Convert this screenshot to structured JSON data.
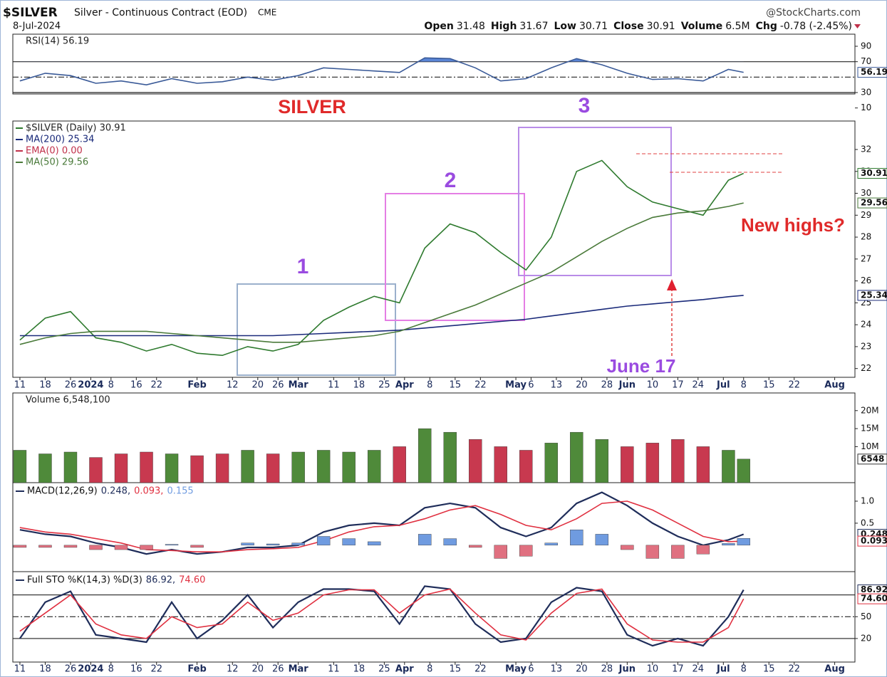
{
  "header": {
    "symbol": "$SILVER",
    "name": "Silver - Continuous Contract (EOD)",
    "exchange": "CME",
    "source": "@StockCharts.com",
    "date": "8-Jul-2024",
    "quote": [
      {
        "label": "Open",
        "value": "31.48"
      },
      {
        "label": "High",
        "value": "31.67"
      },
      {
        "label": "Low",
        "value": "30.71"
      },
      {
        "label": "Close",
        "value": "30.91"
      },
      {
        "label": "Volume",
        "value": "6.5M"
      },
      {
        "label": "Chg",
        "value": "-0.78 (-2.45%)"
      }
    ]
  },
  "chart_data": [
    {
      "type": "rsi",
      "x": [
        0,
        5,
        10,
        15,
        20,
        25,
        30,
        35,
        40,
        45,
        50,
        55,
        60,
        65,
        70,
        75,
        80,
        85,
        90,
        95,
        100,
        105,
        110,
        115,
        120,
        125,
        130,
        135,
        140,
        143
      ],
      "xlim": [
        -1.4,
        165
      ],
      "ylim": [
        2.3,
        105.7
      ],
      "yticks": [
        90,
        70,
        30,
        10
      ],
      "reference_lines": [
        70,
        50,
        30
      ],
      "overbought_fill": "#5b86d6",
      "series": [
        {
          "name": "RSI(14) 56.19",
          "color": "#3a5a98",
          "last_label": "56.19",
          "values": [
            45,
            55,
            52,
            42,
            45,
            40,
            48,
            42,
            44,
            50,
            46,
            52,
            62,
            60,
            58,
            56,
            75,
            74,
            62,
            45,
            48,
            62,
            74,
            66,
            55,
            47,
            48,
            45,
            60,
            56.19
          ]
        }
      ]
    },
    {
      "type": "line",
      "x": [
        0,
        5,
        10,
        15,
        20,
        25,
        30,
        35,
        40,
        45,
        50,
        55,
        60,
        65,
        70,
        75,
        80,
        85,
        90,
        95,
        100,
        105,
        110,
        115,
        120,
        125,
        130,
        135,
        140,
        143
      ],
      "xlim": [
        -1.4,
        165
      ],
      "ylim": [
        21.6,
        33.3
      ],
      "yticks": [
        22,
        23,
        24,
        25,
        26,
        27,
        28,
        29,
        30,
        31,
        32
      ],
      "xticks": [
        {
          "value": 0,
          "label": "11"
        },
        {
          "value": 5,
          "label": "18"
        },
        {
          "value": 10,
          "label": "26"
        },
        {
          "value": 14,
          "label": "2024"
        },
        {
          "value": 18,
          "label": "8"
        },
        {
          "value": 23,
          "label": "16"
        },
        {
          "value": 27,
          "label": "22"
        },
        {
          "value": 35,
          "label": "Feb"
        },
        {
          "value": 42,
          "label": "12"
        },
        {
          "value": 47,
          "label": "20"
        },
        {
          "value": 51,
          "label": "26"
        },
        {
          "value": 55,
          "label": "Mar"
        },
        {
          "value": 62,
          "label": "11"
        },
        {
          "value": 67,
          "label": "18"
        },
        {
          "value": 72,
          "label": "25"
        },
        {
          "value": 76,
          "label": "Apr"
        },
        {
          "value": 81,
          "label": "8"
        },
        {
          "value": 86,
          "label": "15"
        },
        {
          "value": 91,
          "label": "22"
        },
        {
          "value": 98,
          "label": "May"
        },
        {
          "value": 101,
          "label": "6"
        },
        {
          "value": 106,
          "label": "13"
        },
        {
          "value": 111,
          "label": "20"
        },
        {
          "value": 116,
          "label": "28"
        },
        {
          "value": 120,
          "label": "Jun"
        },
        {
          "value": 125,
          "label": "10"
        },
        {
          "value": 130,
          "label": "17"
        },
        {
          "value": 134,
          "label": "24"
        },
        {
          "value": 139,
          "label": "Jul"
        },
        {
          "value": 143,
          "label": "8"
        },
        {
          "value": 148,
          "label": "15"
        },
        {
          "value": 153,
          "label": "22"
        },
        {
          "value": 161,
          "label": "Aug"
        }
      ],
      "annotations": [
        "SILVER",
        "1",
        "2",
        "3",
        "June 17",
        "New highs?"
      ],
      "extra_legend": {
        "name": "EMA(0) 0.00",
        "color": "#c0304a"
      },
      "series": [
        {
          "name": "$SILVER (Daily) 30.91",
          "color": "#2e7a2e",
          "last_label": "30.91",
          "values": [
            23.3,
            24.3,
            24.6,
            23.4,
            23.2,
            22.8,
            23.1,
            22.7,
            22.6,
            23.0,
            22.8,
            23.1,
            24.2,
            24.8,
            25.3,
            25.0,
            27.5,
            28.6,
            28.2,
            27.3,
            26.5,
            28.0,
            31.0,
            31.5,
            30.3,
            29.6,
            29.3,
            29.0,
            30.6,
            30.91
          ]
        },
        {
          "name": "MA(200) 25.34",
          "color": "#1a2a7a",
          "last_label": "25.34",
          "values": [
            23.5,
            23.5,
            23.5,
            23.5,
            23.5,
            23.5,
            23.5,
            23.5,
            23.5,
            23.5,
            23.5,
            23.55,
            23.6,
            23.65,
            23.7,
            23.75,
            23.85,
            23.95,
            24.05,
            24.15,
            24.25,
            24.4,
            24.55,
            24.7,
            24.85,
            24.95,
            25.05,
            25.15,
            25.28,
            25.34
          ]
        },
        {
          "name": "MA(50) 29.56",
          "color": "#4a7a3a",
          "last_label": "29.56",
          "values": [
            23.1,
            23.4,
            23.6,
            23.7,
            23.7,
            23.7,
            23.6,
            23.5,
            23.4,
            23.3,
            23.2,
            23.2,
            23.3,
            23.4,
            23.5,
            23.7,
            24.1,
            24.5,
            24.9,
            25.4,
            25.9,
            26.4,
            27.1,
            27.8,
            28.4,
            28.9,
            29.1,
            29.2,
            29.4,
            29.56
          ]
        }
      ]
    },
    {
      "type": "bar",
      "x": [
        0,
        5,
        10,
        15,
        20,
        25,
        30,
        35,
        40,
        45,
        50,
        55,
        60,
        65,
        70,
        75,
        80,
        85,
        90,
        95,
        100,
        105,
        110,
        115,
        120,
        125,
        130,
        135,
        140,
        143
      ],
      "xlim": [
        -1.4,
        165
      ],
      "ylim": [
        0,
        24900000
      ],
      "yticks": [
        {
          "value": 20000000,
          "label": "20M"
        },
        {
          "value": 15000000,
          "label": "15M"
        },
        {
          "value": 10000000,
          "label": "10M"
        }
      ],
      "series": [
        {
          "name": "Volume 6,548,100",
          "up_color": "#4f8a3a",
          "down_color": "#c8394f",
          "last_label": "6548",
          "values": [
            9000000,
            8000000,
            8500000,
            7000000,
            8000000,
            8500000,
            8000000,
            7500000,
            8000000,
            9000000,
            8000000,
            8500000,
            9000000,
            8500000,
            9000000,
            10000000,
            15000000,
            14000000,
            12000000,
            10000000,
            9000000,
            11000000,
            14000000,
            12000000,
            10000000,
            11000000,
            12000000,
            10000000,
            9000000,
            6548100
          ]
        }
      ]
    },
    {
      "type": "line",
      "x": [
        0,
        5,
        10,
        15,
        20,
        25,
        30,
        35,
        40,
        45,
        50,
        55,
        60,
        65,
        70,
        75,
        80,
        85,
        90,
        95,
        100,
        105,
        110,
        115,
        120,
        125,
        130,
        135,
        140,
        143
      ],
      "xlim": [
        -1.4,
        165
      ],
      "ylim": [
        -0.6,
        1.42
      ],
      "yticks": [
        {
          "value": 1,
          "label": "1.0"
        },
        {
          "value": 0.5,
          "label": "0.5"
        }
      ],
      "legend_title": "MACD(12,26,9)",
      "series": [
        {
          "name": "0.248,",
          "color": "#1f2d5a",
          "last_label": "0.248",
          "values": [
            0.35,
            0.25,
            0.2,
            0.05,
            -0.05,
            -0.2,
            -0.1,
            -0.2,
            -0.15,
            -0.05,
            -0.05,
            0,
            0.3,
            0.45,
            0.5,
            0.45,
            0.85,
            0.95,
            0.85,
            0.4,
            0.2,
            0.4,
            0.95,
            1.2,
            0.9,
            0.5,
            0.2,
            0,
            0.12,
            0.248
          ]
        },
        {
          "name": "0.093,",
          "color": "#e03040",
          "last_label": "0.093",
          "values": [
            0.4,
            0.3,
            0.25,
            0.15,
            0.05,
            -0.1,
            -0.12,
            -0.15,
            -0.15,
            -0.1,
            -0.08,
            -0.05,
            0.1,
            0.3,
            0.42,
            0.45,
            0.6,
            0.8,
            0.9,
            0.7,
            0.45,
            0.35,
            0.6,
            0.95,
            1,
            0.8,
            0.5,
            0.2,
            0.08,
            0.093
          ]
        },
        {
          "name": "0.155",
          "type": "bar",
          "color": "#6f9be0",
          "down_color": "#e07080",
          "values": [
            -0.05,
            -0.05,
            -0.05,
            -0.1,
            -0.1,
            -0.1,
            0.02,
            -0.05,
            0,
            0.05,
            0.03,
            0.05,
            0.2,
            0.15,
            0.08,
            0,
            0.25,
            0.15,
            -0.05,
            -0.3,
            -0.25,
            0.05,
            0.35,
            0.25,
            -0.1,
            -0.3,
            -0.3,
            -0.2,
            0.04,
            0.155
          ]
        }
      ]
    },
    {
      "type": "line",
      "x": [
        0,
        5,
        10,
        15,
        20,
        25,
        30,
        35,
        40,
        45,
        50,
        55,
        60,
        65,
        70,
        75,
        80,
        85,
        90,
        95,
        100,
        105,
        110,
        115,
        120,
        125,
        130,
        135,
        140,
        143
      ],
      "xlim": [
        -1.4,
        165
      ],
      "ylim": [
        -12.4,
        112
      ],
      "yticks": [
        50,
        20
      ],
      "reference_lines": [
        80,
        50,
        20
      ],
      "xticks": [
        {
          "value": 0,
          "label": "11"
        },
        {
          "value": 5,
          "label": "18"
        },
        {
          "value": 10,
          "label": "26"
        },
        {
          "value": 14,
          "label": "2024"
        },
        {
          "value": 18,
          "label": "8"
        },
        {
          "value": 23,
          "label": "16"
        },
        {
          "value": 27,
          "label": "22"
        },
        {
          "value": 35,
          "label": "Feb"
        },
        {
          "value": 42,
          "label": "12"
        },
        {
          "value": 47,
          "label": "20"
        },
        {
          "value": 51,
          "label": "26"
        },
        {
          "value": 55,
          "label": "Mar"
        },
        {
          "value": 62,
          "label": "11"
        },
        {
          "value": 67,
          "label": "18"
        },
        {
          "value": 72,
          "label": "25"
        },
        {
          "value": 76,
          "label": "Apr"
        },
        {
          "value": 81,
          "label": "8"
        },
        {
          "value": 86,
          "label": "15"
        },
        {
          "value": 91,
          "label": "22"
        },
        {
          "value": 98,
          "label": "May"
        },
        {
          "value": 101,
          "label": "6"
        },
        {
          "value": 106,
          "label": "13"
        },
        {
          "value": 111,
          "label": "20"
        },
        {
          "value": 116,
          "label": "28"
        },
        {
          "value": 120,
          "label": "Jun"
        },
        {
          "value": 125,
          "label": "10"
        },
        {
          "value": 130,
          "label": "17"
        },
        {
          "value": 134,
          "label": "24"
        },
        {
          "value": 139,
          "label": "Jul"
        },
        {
          "value": 143,
          "label": "8"
        },
        {
          "value": 148,
          "label": "15"
        },
        {
          "value": 153,
          "label": "22"
        },
        {
          "value": 161,
          "label": "Aug"
        }
      ],
      "legend_title": "Full STO %K(14,3) %D(3)",
      "series": [
        {
          "name": "86.92,",
          "color": "#1f2d5a",
          "last_label": "86.92",
          "values": [
            20,
            70,
            85,
            25,
            20,
            15,
            70,
            20,
            45,
            80,
            35,
            70,
            88,
            88,
            85,
            40,
            92,
            88,
            40,
            15,
            20,
            70,
            90,
            85,
            25,
            10,
            20,
            10,
            50,
            86.92
          ]
        },
        {
          "name": "74.60",
          "color": "#e03040",
          "last_label": "74.60",
          "values": [
            30,
            55,
            80,
            40,
            25,
            20,
            50,
            35,
            40,
            70,
            45,
            55,
            80,
            87,
            87,
            55,
            80,
            88,
            55,
            25,
            18,
            55,
            82,
            88,
            40,
            18,
            15,
            15,
            35,
            74.6
          ]
        }
      ]
    }
  ]
}
